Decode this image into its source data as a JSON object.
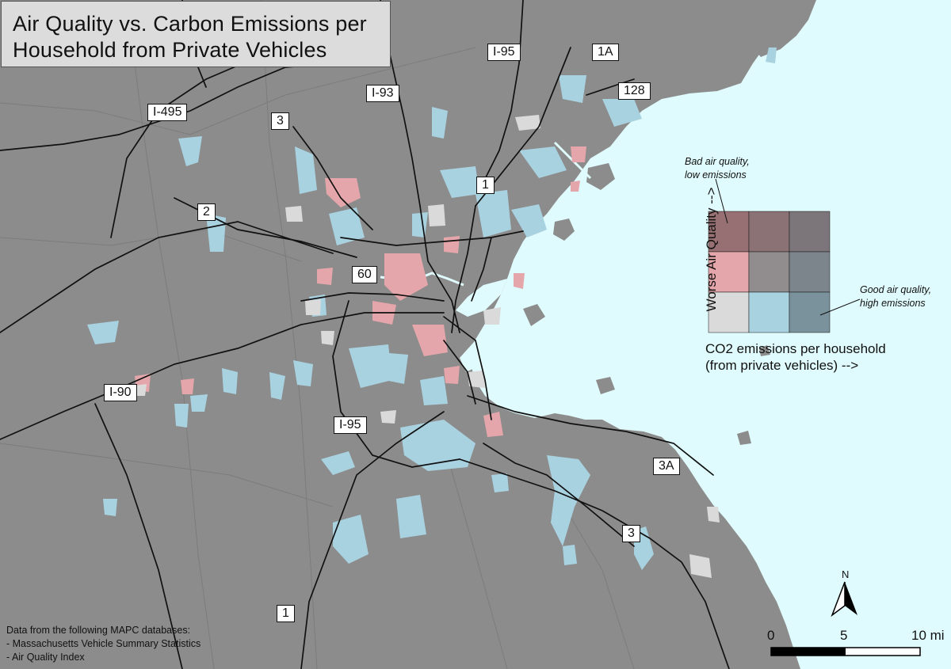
{
  "title": {
    "line1": "Air Quality vs. Carbon Emissions per",
    "line2": "Household from Private Vehicles"
  },
  "route_labels": [
    "I-95",
    "1A",
    "128",
    "I-93",
    "I-495",
    "3",
    "1",
    "2",
    "60",
    "I-90",
    "I-95",
    "3A",
    "3",
    "1"
  ],
  "legend": {
    "axis_y": "Worse Air Quality -->",
    "axis_x_line1": "CO2 emissions per household",
    "axis_x_line2": "(from private vehicles) -->",
    "top_note_line1": "Bad air quality,",
    "top_note_line2": "low emissions",
    "right_note_line1": "Good air quality,",
    "right_note_line2": "high emissions",
    "grid_colors": [
      [
        "#967072",
        "#8b7375",
        "#7c7579"
      ],
      [
        "#e4a6aa",
        "#918d8f",
        "#7d858c"
      ],
      [
        "#dadada",
        "#a9d2e1",
        "#7a929c"
      ]
    ]
  },
  "sources": {
    "heading": "Data from the following MAPC databases:",
    "items": [
      "- Massachusetts Vehicle Summary Statistics",
      "- Air Quality Index"
    ]
  },
  "scale_bar": {
    "labels": [
      "0",
      "5",
      "10 mi"
    ]
  },
  "north_arrow": {
    "label": "N"
  },
  "colors": {
    "water": "#e0fbfd",
    "land": "#8c8c8c",
    "low_aq_low_em": "#dadada",
    "high_aq_low_em": "#e4a6aa",
    "low_aq_mid_em": "#a9d2e1"
  }
}
